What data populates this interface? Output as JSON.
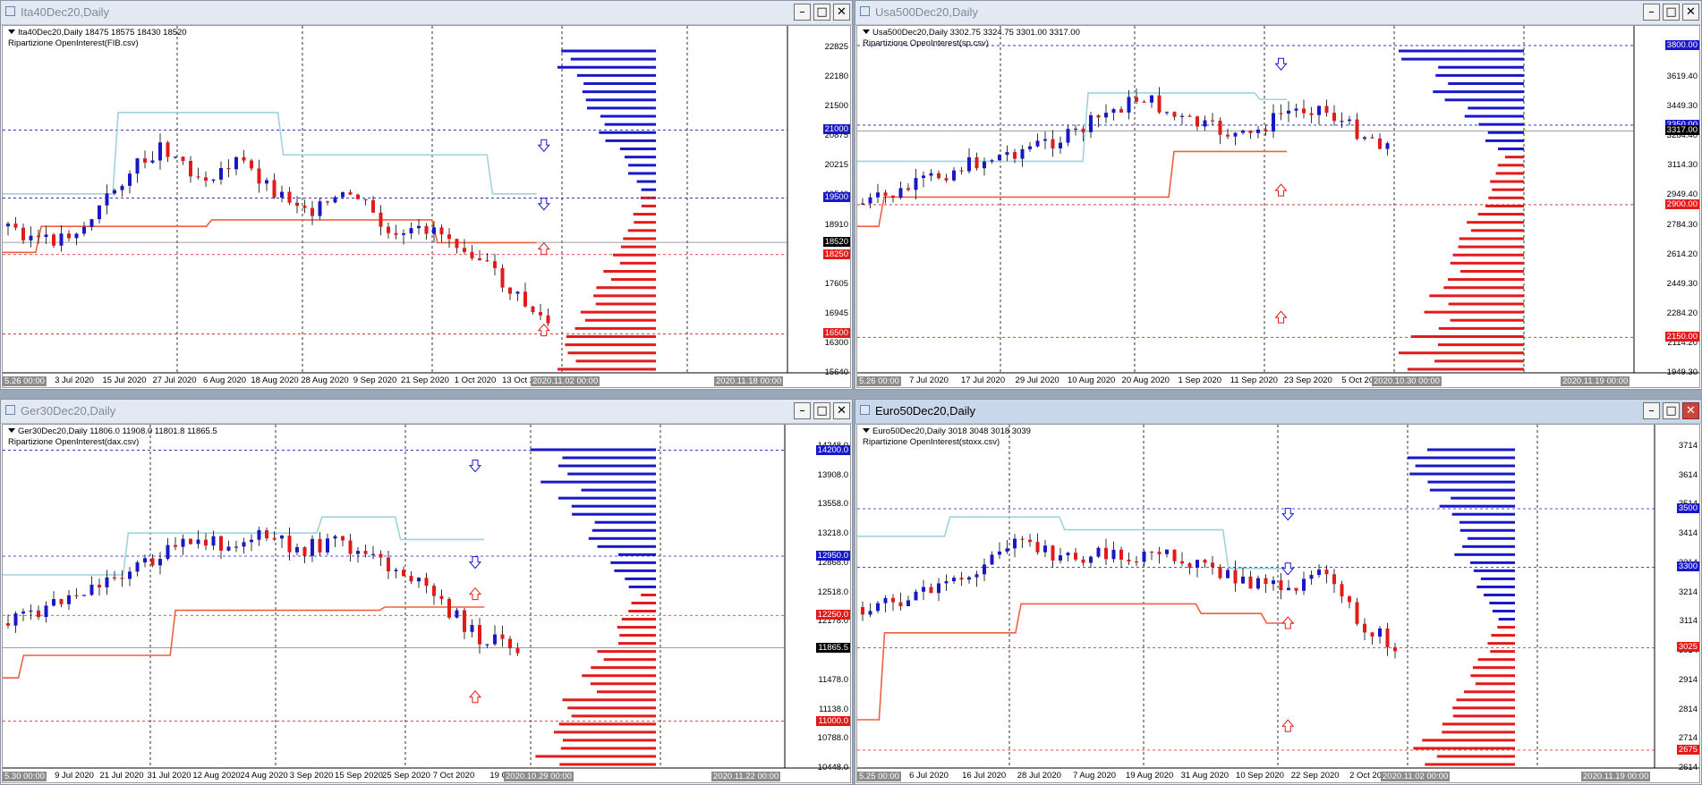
{
  "colors": {
    "blue": "#1818c8",
    "red": "#e21a1a",
    "orange": "#ee6040",
    "cyan": "#9fd3de",
    "grid": "#000000"
  },
  "icons": {
    "window": "chart-window-icon",
    "minimize": "minimize-icon",
    "maximize": "maximize-icon",
    "close": "close-icon"
  },
  "windows": [
    {
      "title": "Ita40Dec20,Daily",
      "symbol_line": "Ita40Dec20,Daily  18475 18575 18430 18520",
      "indicator": "Ripartizione OpenInterest(FIB.csv)",
      "price_labels": [
        "22825",
        "22180",
        "21500",
        "20875",
        "20215",
        "19540",
        "18910",
        "18250",
        "17605",
        "16945",
        "16300",
        "15640"
      ],
      "tags": [
        {
          "text": "21000",
          "color": "blue",
          "price": 21000
        },
        {
          "text": "19500",
          "color": "blue",
          "price": 19500
        },
        {
          "text": "18520",
          "color": "black",
          "price": 18520
        },
        {
          "text": "18250",
          "color": "red",
          "price": 18250
        },
        {
          "text": "16500",
          "color": "red",
          "price": 16500
        }
      ],
      "date_labels": [
        "3 Jul 2020",
        "15 Jul 2020",
        "27 Jul 2020",
        "6 Aug 2020",
        "18 Aug 2020",
        "28 Aug 2020",
        "9 Sep 2020",
        "21 Sep 2020",
        "1 Oct 2020",
        "13 Oct 2020",
        "23"
      ],
      "date_left": "5.26 00:00",
      "date_boxes": [
        "2020.11.02 00:00",
        "2020.11.18 00:00"
      ],
      "controls": {
        "minimize": "–",
        "maximize": "□",
        "close": "✕"
      }
    },
    {
      "title": "Usa500Dec20,Daily",
      "symbol_line": "Usa500Dec20,Daily  3302.75 3324.75 3301.00 3317.00",
      "indicator": "Ripartizione OpenInterest(sp.csv)",
      "price_labels": [
        "3789.50",
        "3619.40",
        "3449.30",
        "3284.40",
        "3114.30",
        "2949.40",
        "2784.30",
        "2614.20",
        "2449.30",
        "2284.20",
        "2114.20",
        "1949.30"
      ],
      "tags": [
        {
          "text": "3800.00",
          "color": "blue",
          "price": 3800
        },
        {
          "text": "3350.00",
          "color": "blue",
          "price": 3350
        },
        {
          "text": "3317.00",
          "color": "black",
          "price": 3317
        },
        {
          "text": "2900.00",
          "color": "red",
          "price": 2900
        },
        {
          "text": "2150.00",
          "color": "red",
          "price": 2150
        }
      ],
      "date_labels": [
        "7 Jul 2020",
        "17 Jul 2020",
        "29 Jul 2020",
        "10 Aug 2020",
        "20 Aug 2020",
        "1 Sep 2020",
        "11 Sep 2020",
        "23 Sep 2020",
        "5 Oct 2020",
        "15 Oct 2020"
      ],
      "date_left": "5.26 00:00",
      "date_boxes": [
        "2020.10.30 00:00",
        "2020.11.19 00:00"
      ],
      "controls": {
        "minimize": "–",
        "maximize": "□",
        "close": "✕"
      }
    },
    {
      "title": "Ger30Dec20,Daily",
      "symbol_line": "Ger30Dec20,Daily  11806.0 11908.0 11801.8 11865.5",
      "indicator": "Ripartizione OpenInterest(dax.csv)",
      "price_labels": [
        "14248.0",
        "13908.0",
        "13558.0",
        "13218.0",
        "12868.0",
        "12518.0",
        "12178.0",
        "11828.0",
        "11478.0",
        "11138.0",
        "10788.0",
        "10448.0"
      ],
      "tags": [
        {
          "text": "14200.0",
          "color": "blue",
          "price": 14200
        },
        {
          "text": "12950.0",
          "color": "blue",
          "price": 12950
        },
        {
          "text": "12250.0",
          "color": "red",
          "price": 12250
        },
        {
          "text": "11865.5",
          "color": "black",
          "price": 11865.5
        },
        {
          "text": "11000.0",
          "color": "red",
          "price": 11000
        }
      ],
      "date_labels": [
        "9 Jul 2020",
        "21 Jul 2020",
        "31 Jul 2020",
        "12 Aug 2020",
        "24 Aug 2020",
        "3 Sep 2020",
        "15 Sep 2020",
        "25 Sep 2020",
        "7 Oct 2020",
        "19 Oc",
        "20"
      ],
      "date_left": "5.30 00:00",
      "date_boxes": [
        "2020.10.29 00:00",
        "2020.11.22 00:00"
      ],
      "controls": {
        "minimize": "–",
        "maximize": "□",
        "close": "✕"
      }
    },
    {
      "title": "Euro50Dec20,Daily",
      "symbol_line": "Euro50Dec20,Daily  3018 3048 3018 3039",
      "indicator": "Ripartizione OpenInterest(stoxx.csv)",
      "price_labels": [
        "3714",
        "3614",
        "3514",
        "3414",
        "3314",
        "3214",
        "3114",
        "3014",
        "2914",
        "2814",
        "2714",
        "2614"
      ],
      "tags": [
        {
          "text": "3500",
          "color": "blue",
          "price": 3500
        },
        {
          "text": "3300",
          "color": "blue",
          "price": 3300
        },
        {
          "text": "3025",
          "color": "red",
          "price": 3025
        },
        {
          "text": "2675",
          "color": "red",
          "price": 2675
        }
      ],
      "date_labels": [
        "6 Jul 2020",
        "16 Jul 2020",
        "28 Jul 2020",
        "7 Aug 2020",
        "19 Aug 2020",
        "31 Aug 2020",
        "10 Sep 2020",
        "22 Sep 2020",
        "2 Oct 2020",
        "14 Oct 2020"
      ],
      "date_left": "5.25 00:00",
      "date_boxes": [
        "2020.11.02 00:00",
        "2020.11.19 00:00"
      ],
      "controls": {
        "minimize": "–",
        "maximize": "□",
        "close": "✕"
      }
    }
  ]
}
